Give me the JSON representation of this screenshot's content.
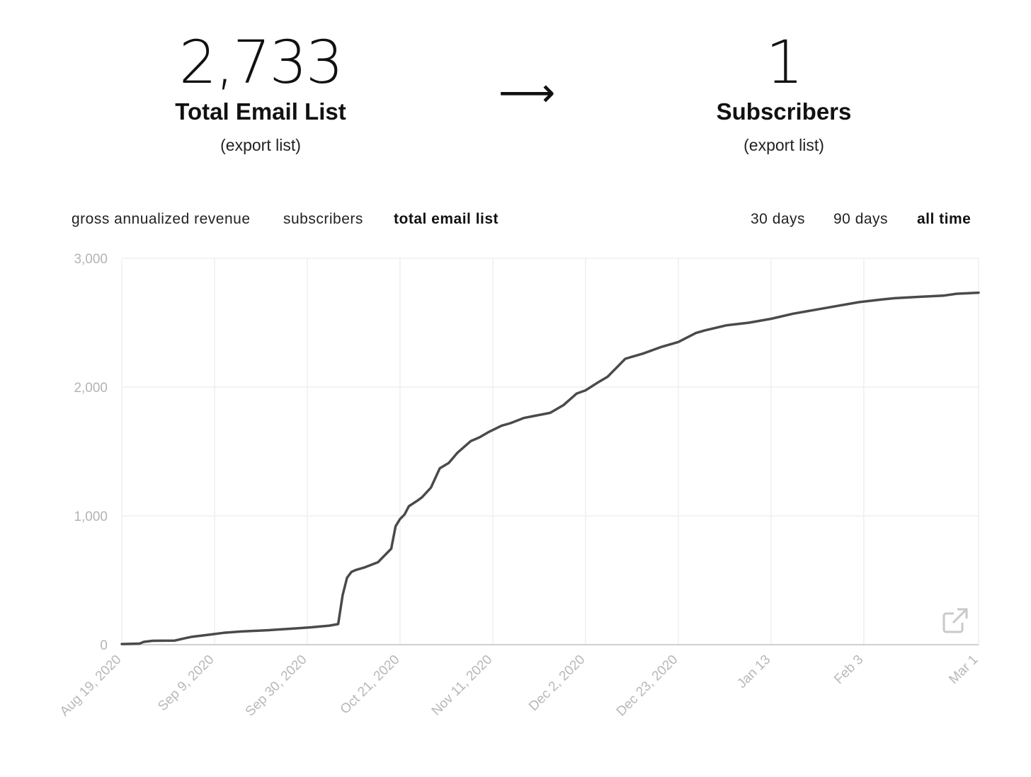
{
  "left_stat": {
    "value": "2,733",
    "label": "Total Email List",
    "link": "(export list)"
  },
  "arrow": "⟶",
  "right_stat": {
    "value": "1",
    "label": "Subscribers",
    "link": "(export list)"
  },
  "metric_tabs": [
    "gross annualized revenue",
    "subscribers",
    "total email list"
  ],
  "active_metric": "total email list",
  "range_tabs": [
    "30 days",
    "90 days",
    "all time"
  ],
  "active_range": "all time",
  "icons": {
    "open_external": "external-link-icon"
  },
  "colors": {
    "line": "#4a4a4a",
    "grid": "#efefef",
    "axis": "#cfcfcf",
    "tick_text": "#b3b3b3"
  },
  "chart_data": {
    "type": "line",
    "title": "",
    "xlabel": "",
    "ylabel": "",
    "ylim": [
      0,
      3000
    ],
    "y_ticks": [
      0,
      1000,
      2000,
      3000
    ],
    "y_tick_labels": [
      "0",
      "1,000",
      "2,000",
      "3,000"
    ],
    "x_ticks": [
      "2020-08-19",
      "2020-09-09",
      "2020-09-30",
      "2020-10-21",
      "2020-11-11",
      "2020-12-02",
      "2020-12-23",
      "2021-01-13",
      "2021-02-03",
      "2021-03-01"
    ],
    "x_tick_labels": [
      "Aug 19, 2020",
      "Sep 9, 2020",
      "Sep 30, 2020",
      "Oct 21, 2020",
      "Nov 11, 2020",
      "Dec 2, 2020",
      "Dec 23, 2020",
      "Jan 13",
      "Feb 3",
      "Mar 1"
    ],
    "xlim": [
      "2020-08-19",
      "2021-03-01"
    ],
    "grid": true,
    "series": [
      {
        "x": [
          "2020-08-19",
          "2020-08-23",
          "2020-08-24",
          "2020-08-26",
          "2020-08-31",
          "2020-09-02",
          "2020-09-04",
          "2020-09-08",
          "2020-09-11",
          "2020-09-15",
          "2020-09-21",
          "2020-09-28",
          "2020-10-01",
          "2020-10-05",
          "2020-10-07",
          "2020-10-08",
          "2020-10-09",
          "2020-10-10",
          "2020-10-11",
          "2020-10-13",
          "2020-10-16",
          "2020-10-19",
          "2020-10-20",
          "2020-10-21",
          "2020-10-22",
          "2020-10-23",
          "2020-10-25",
          "2020-10-26",
          "2020-10-28",
          "2020-10-30",
          "2020-11-01",
          "2020-11-02",
          "2020-11-03",
          "2020-11-06",
          "2020-11-08",
          "2020-11-10",
          "2020-11-13",
          "2020-11-15",
          "2020-11-18",
          "2020-11-21",
          "2020-11-24",
          "2020-11-27",
          "2020-11-29",
          "2020-11-30",
          "2020-12-02",
          "2020-12-05",
          "2020-12-07",
          "2020-12-09",
          "2020-12-11",
          "2020-12-13",
          "2020-12-15",
          "2020-12-19",
          "2020-12-23",
          "2020-12-27",
          "2020-12-29",
          "2021-01-03",
          "2021-01-08",
          "2021-01-13",
          "2021-01-18",
          "2021-01-23",
          "2021-01-28",
          "2021-02-02",
          "2021-02-07",
          "2021-02-10",
          "2021-02-15",
          "2021-02-21",
          "2021-02-24",
          "2021-03-01"
        ],
        "values": [
          5,
          8,
          22,
          30,
          32,
          48,
          62,
          78,
          92,
          102,
          112,
          128,
          135,
          148,
          160,
          385,
          520,
          565,
          580,
          600,
          640,
          745,
          920,
          975,
          1010,
          1075,
          1120,
          1145,
          1220,
          1370,
          1410,
          1450,
          1490,
          1580,
          1610,
          1650,
          1700,
          1720,
          1760,
          1780,
          1800,
          1860,
          1920,
          1950,
          1975,
          2040,
          2080,
          2150,
          2220,
          2240,
          2260,
          2310,
          2350,
          2420,
          2440,
          2480,
          2500,
          2530,
          2570,
          2600,
          2630,
          2660,
          2680,
          2690,
          2700,
          2710,
          2725,
          2733
        ]
      }
    ]
  }
}
